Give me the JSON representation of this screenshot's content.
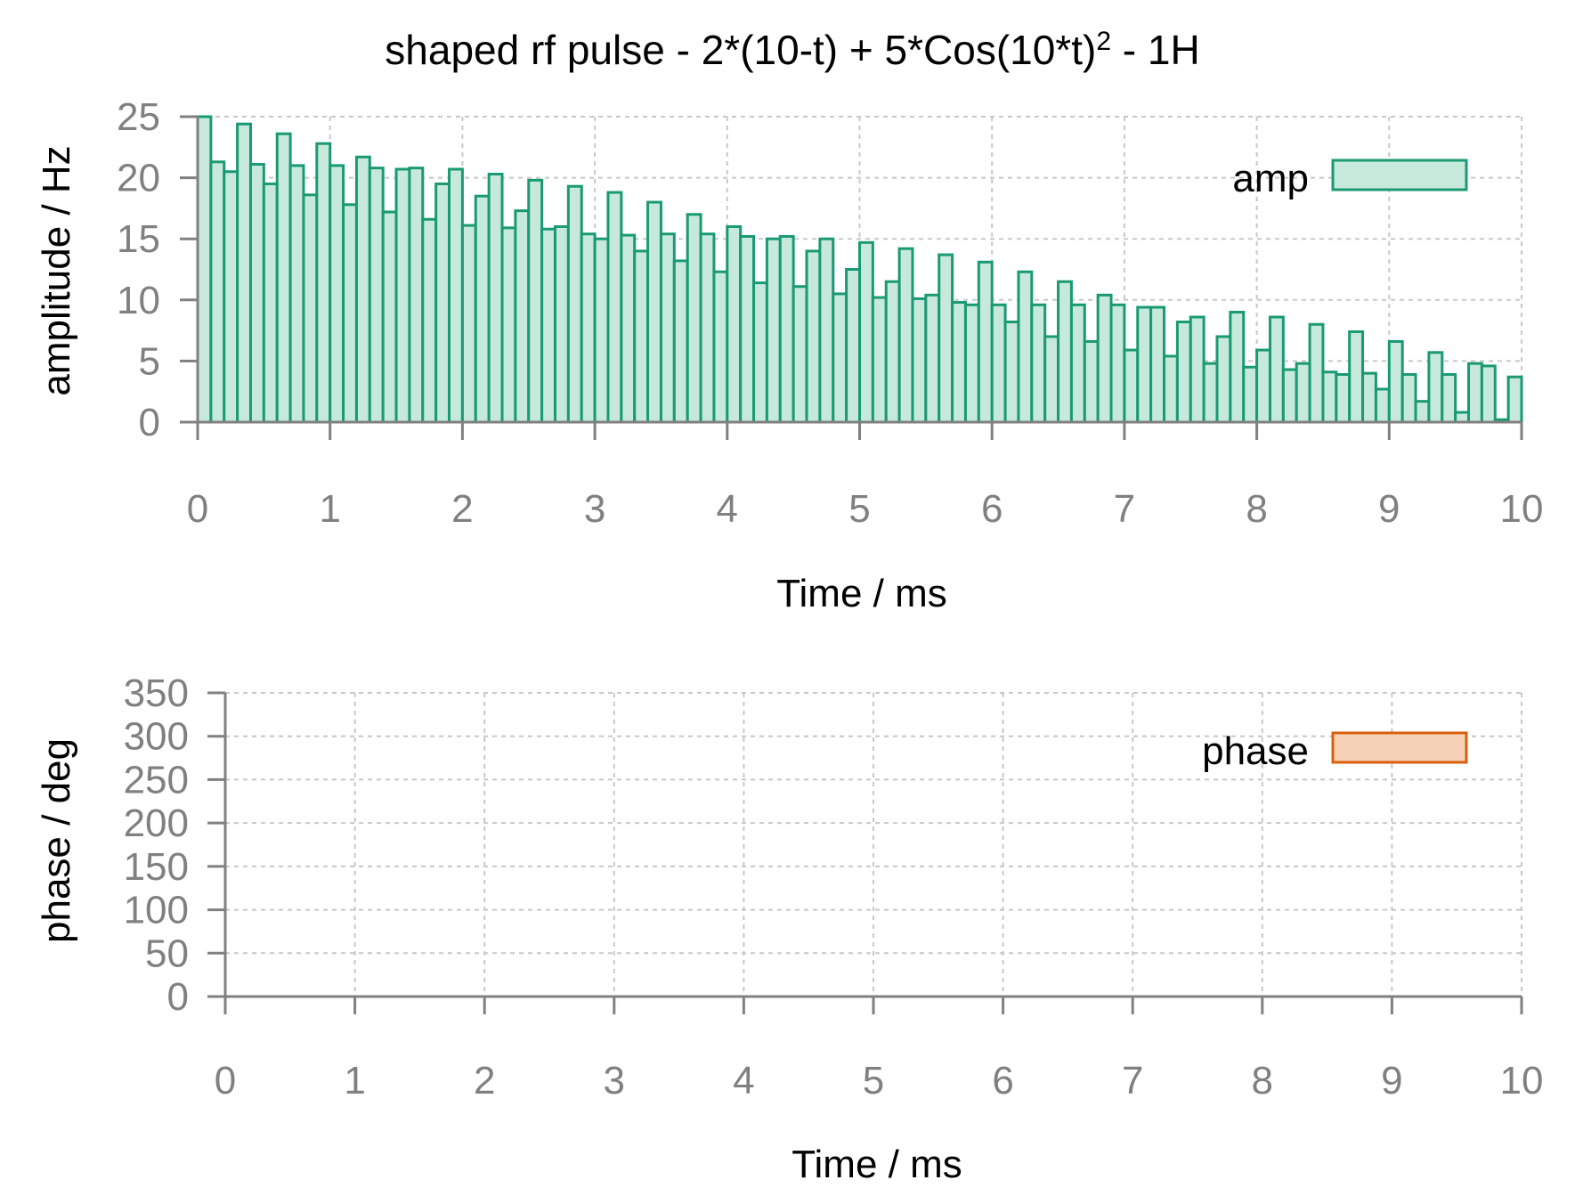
{
  "colors": {
    "amp_fill": "#c6e9dc",
    "amp_stroke": "#1a9a73",
    "phase_fill": "#f6d3b7",
    "phase_stroke": "#d95f0e",
    "axis": "#808080",
    "grid": "#c8c8c8"
  },
  "chart_data": [
    {
      "type": "bar",
      "title": "shaped rf pulse - 2*(10-t) + 5*Cos(10*t)",
      "title_superscript": "2",
      "title_suffix": " - 1H",
      "xlabel": "Time / ms",
      "ylabel": "amplitude / Hz",
      "xlim": [
        0,
        10
      ],
      "ylim": [
        0,
        25
      ],
      "xticks": [
        "0",
        "1",
        "2",
        "3",
        "4",
        "5",
        "6",
        "7",
        "8",
        "9",
        "10"
      ],
      "yticks": [
        "0",
        "5",
        "10",
        "15",
        "20",
        "25"
      ],
      "grid": true,
      "legend": "top-right",
      "bin_width": 0.1,
      "series": [
        {
          "name": "amp",
          "x": [
            0.0,
            0.1,
            0.2,
            0.3,
            0.4,
            0.5,
            0.6,
            0.7,
            0.8,
            0.9,
            1.0,
            1.1,
            1.2,
            1.3,
            1.4,
            1.5,
            1.6,
            1.7,
            1.8,
            1.9,
            2.0,
            2.1,
            2.2,
            2.3,
            2.4,
            2.5,
            2.6,
            2.7,
            2.8,
            2.9,
            3.0,
            3.1,
            3.2,
            3.3,
            3.4,
            3.5,
            3.6,
            3.7,
            3.8,
            3.9,
            4.0,
            4.1,
            4.2,
            4.3,
            4.4,
            4.5,
            4.6,
            4.7,
            4.8,
            4.9,
            5.0,
            5.1,
            5.2,
            5.3,
            5.4,
            5.5,
            5.6,
            5.7,
            5.8,
            5.9,
            6.0,
            6.1,
            6.2,
            6.3,
            6.4,
            6.5,
            6.6,
            6.7,
            6.8,
            6.9,
            7.0,
            7.1,
            7.2,
            7.3,
            7.4,
            7.5,
            7.6,
            7.7,
            7.8,
            7.9,
            8.0,
            8.1,
            8.2,
            8.3,
            8.4,
            8.5,
            8.6,
            8.7,
            8.8,
            8.9,
            9.0,
            9.1,
            9.2,
            9.3,
            9.4,
            9.5,
            9.6,
            9.7,
            9.8,
            9.9
          ],
          "values": [
            25.0,
            21.3,
            20.5,
            24.4,
            21.1,
            19.5,
            23.6,
            21.0,
            18.6,
            22.8,
            21.0,
            17.8,
            21.7,
            20.8,
            17.2,
            20.7,
            20.8,
            16.6,
            19.5,
            20.7,
            16.1,
            18.5,
            20.3,
            15.9,
            17.3,
            19.8,
            15.8,
            16.0,
            19.3,
            15.4,
            15.0,
            18.8,
            15.3,
            14.0,
            18.0,
            15.4,
            13.2,
            17.0,
            15.4,
            12.3,
            16.0,
            15.2,
            11.4,
            15.0,
            15.2,
            11.1,
            14.0,
            15.0,
            10.5,
            12.5,
            14.7,
            10.2,
            11.5,
            14.2,
            10.1,
            10.4,
            13.7,
            9.8,
            9.6,
            13.1,
            9.6,
            8.2,
            12.3,
            9.6,
            7.0,
            11.5,
            9.6,
            6.6,
            10.4,
            9.6,
            5.9,
            9.4,
            9.4,
            5.4,
            8.2,
            8.6,
            4.8,
            7.0,
            9.0,
            4.5,
            5.9,
            8.6,
            4.3,
            4.8,
            8.0,
            4.1,
            3.9,
            7.4,
            4.0,
            2.7,
            6.6,
            3.9,
            1.7,
            5.7,
            3.9,
            0.8,
            4.8,
            4.6,
            0.2,
            3.7
          ]
        }
      ]
    },
    {
      "type": "bar",
      "title": "",
      "xlabel": "Time / ms",
      "ylabel": "phase / deg",
      "xlim": [
        0,
        10
      ],
      "ylim": [
        0,
        350
      ],
      "xticks": [
        "0",
        "1",
        "2",
        "3",
        "4",
        "5",
        "6",
        "7",
        "8",
        "9",
        "10"
      ],
      "yticks": [
        "0",
        "50",
        "100",
        "150",
        "200",
        "250",
        "300",
        "350"
      ],
      "grid": true,
      "legend": "top-right",
      "series": [
        {
          "name": "phase",
          "x": [],
          "values": []
        }
      ]
    }
  ]
}
